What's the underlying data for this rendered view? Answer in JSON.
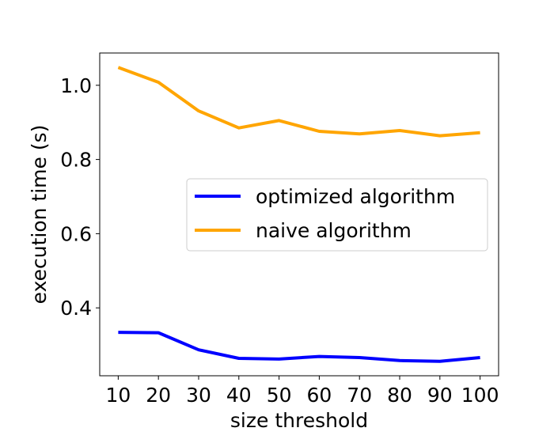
{
  "chart_data": {
    "type": "line",
    "title": "",
    "xlabel": "size threshold",
    "ylabel": "execution time (s)",
    "x": [
      10,
      20,
      30,
      40,
      50,
      60,
      70,
      80,
      90,
      100
    ],
    "xlim": [
      5.4,
      104.6
    ],
    "ylim": [
      0.217,
      1.087
    ],
    "xticks": [
      10,
      20,
      30,
      40,
      50,
      60,
      70,
      80,
      90,
      100
    ],
    "yticks": [
      0.4,
      0.6,
      0.8,
      1.0
    ],
    "ytick_labels": [
      "0.4",
      "0.6",
      "0.8",
      "1.0"
    ],
    "grid": false,
    "legend_position": "center-right",
    "series": [
      {
        "name": "optimized algorithm",
        "color": "#0000ff",
        "values": [
          0.334,
          0.333,
          0.287,
          0.264,
          0.262,
          0.269,
          0.266,
          0.258,
          0.256,
          0.266
        ]
      },
      {
        "name": "naive algorithm",
        "color": "#ffa500",
        "values": [
          1.048,
          1.008,
          0.931,
          0.885,
          0.905,
          0.876,
          0.869,
          0.878,
          0.864,
          0.872
        ]
      }
    ]
  }
}
